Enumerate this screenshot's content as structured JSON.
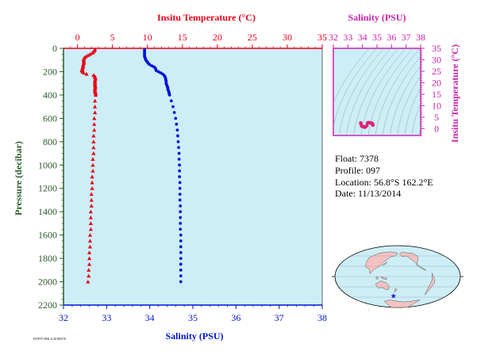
{
  "colors": {
    "temperature": "#e8001a",
    "salinity": "#0014d6",
    "ts_axis": "#cc22aa",
    "plot_bg": "#cdeef6",
    "depth_axis": "#2a5a2a",
    "land": "#f4c2c2",
    "ocean": "#cdeef6"
  },
  "info": {
    "float": "Float:  7378",
    "profile": "Profile:  097",
    "location": "Location:  56.8°S  162.2°E",
    "date": "Date:  11/13/2014"
  },
  "footer_code": "P47F97-EBCA 20180270",
  "chart_data": [
    {
      "type": "scatter",
      "name": "profile",
      "title": "",
      "top_axis_label": "Insitu Temperature (°C)",
      "bottom_axis_label": "Salinity (PSU)",
      "ylabel": "Pressure (decibar)",
      "temp_ticks": [
        0,
        5,
        10,
        15,
        20,
        25,
        30,
        35
      ],
      "temp_lim": [
        -2,
        35
      ],
      "sal_ticks": [
        32,
        33,
        34,
        35,
        36,
        37,
        38
      ],
      "sal_lim": [
        32,
        38
      ],
      "pressure_ticks": [
        0,
        200,
        400,
        600,
        800,
        1000,
        1200,
        1400,
        1600,
        1800,
        2000,
        2200
      ],
      "pressure_lim": [
        0,
        2200
      ],
      "y_reversed": true,
      "grid": false,
      "temperature_profile": {
        "marker": "triangle",
        "pressure": [
          10,
          20,
          30,
          40,
          50,
          60,
          70,
          80,
          90,
          100,
          110,
          120,
          130,
          140,
          150,
          160,
          170,
          180,
          190,
          200,
          210,
          220,
          230,
          240,
          250,
          260,
          270,
          280,
          290,
          300,
          310,
          320,
          330,
          340,
          350,
          360,
          370,
          380,
          390,
          400,
          450,
          500,
          550,
          600,
          650,
          700,
          750,
          800,
          850,
          900,
          950,
          1000,
          1050,
          1100,
          1150,
          1200,
          1250,
          1300,
          1350,
          1400,
          1450,
          1500,
          1550,
          1600,
          1650,
          1700,
          1750,
          1800,
          1850,
          1900,
          1950,
          2000
        ],
        "temperature": [
          2.5,
          2.4,
          2.3,
          2.1,
          1.8,
          1.5,
          1.2,
          1.0,
          0.9,
          0.9,
          0.9,
          0.9,
          0.9,
          0.8,
          0.8,
          0.8,
          0.7,
          0.7,
          0.6,
          0.7,
          0.9,
          1.3,
          2.3,
          2.5,
          2.5,
          2.6,
          2.5,
          2.5,
          2.5,
          2.5,
          2.5,
          2.5,
          2.6,
          2.5,
          2.5,
          2.5,
          2.5,
          2.6,
          2.6,
          2.6,
          2.5,
          2.5,
          2.5,
          2.4,
          2.4,
          2.4,
          2.3,
          2.3,
          2.3,
          2.3,
          2.2,
          2.2,
          2.2,
          2.1,
          2.1,
          2.1,
          2.0,
          2.0,
          2.0,
          1.9,
          1.9,
          1.9,
          1.9,
          1.8,
          1.8,
          1.8,
          1.7,
          1.7,
          1.7,
          1.6,
          1.6,
          1.5
        ]
      },
      "salinity_profile": {
        "marker": "circle",
        "pressure": [
          10,
          20,
          30,
          40,
          50,
          60,
          70,
          80,
          90,
          100,
          110,
          120,
          130,
          140,
          150,
          160,
          170,
          180,
          190,
          200,
          210,
          220,
          230,
          240,
          250,
          260,
          270,
          280,
          290,
          300,
          310,
          320,
          330,
          340,
          350,
          360,
          370,
          380,
          390,
          400,
          450,
          500,
          550,
          600,
          650,
          700,
          750,
          800,
          850,
          900,
          950,
          1000,
          1050,
          1100,
          1150,
          1200,
          1250,
          1300,
          1350,
          1400,
          1450,
          1500,
          1550,
          1600,
          1650,
          1700,
          1750,
          1800,
          1850,
          1900,
          1950,
          2000
        ],
        "salinity": [
          33.88,
          33.88,
          33.88,
          33.88,
          33.88,
          33.88,
          33.88,
          33.89,
          33.9,
          33.91,
          33.93,
          33.95,
          33.97,
          34.0,
          34.05,
          34.1,
          34.13,
          34.14,
          34.15,
          34.2,
          34.25,
          34.3,
          34.33,
          34.35,
          34.36,
          34.37,
          34.37,
          34.38,
          34.38,
          34.38,
          34.39,
          34.4,
          34.41,
          34.42,
          34.42,
          34.43,
          34.44,
          34.45,
          34.45,
          34.46,
          34.5,
          34.54,
          34.57,
          34.6,
          34.62,
          34.64,
          34.65,
          34.66,
          34.67,
          34.68,
          34.68,
          34.69,
          34.69,
          34.69,
          34.7,
          34.7,
          34.7,
          34.7,
          34.71,
          34.71,
          34.71,
          34.71,
          34.71,
          34.72,
          34.72,
          34.72,
          34.72,
          34.72,
          34.72,
          34.72,
          34.72,
          34.72
        ]
      }
    },
    {
      "type": "scatter",
      "name": "ts_diagram",
      "title": "",
      "xlabel": "Salinity (PSU)",
      "ylabel": "Insitu Temperature (°C)",
      "x_ticks": [
        32,
        33,
        34,
        35,
        36,
        37,
        38
      ],
      "xlim": [
        32,
        38
      ],
      "y_ticks": [
        0,
        5,
        10,
        15,
        20,
        25,
        30,
        35
      ],
      "ylim": [
        -3,
        35
      ],
      "density_contours": true,
      "grid": false,
      "points_salinity": [
        33.88,
        33.89,
        33.93,
        34.0,
        34.1,
        34.15,
        34.2,
        34.3,
        34.35,
        34.38,
        34.4,
        34.43,
        34.46,
        34.5,
        34.55,
        34.6,
        34.65,
        34.68,
        34.7,
        34.72
      ],
      "points_temperature": [
        2.5,
        2.2,
        1.2,
        0.9,
        0.8,
        0.6,
        0.7,
        1.3,
        2.5,
        2.5,
        2.6,
        2.6,
        2.6,
        2.5,
        2.5,
        2.4,
        2.3,
        2.2,
        2.0,
        1.5
      ]
    },
    {
      "type": "map",
      "name": "location_map",
      "projection": "world",
      "marker_lat": -56.8,
      "marker_lon": 162.2
    }
  ]
}
